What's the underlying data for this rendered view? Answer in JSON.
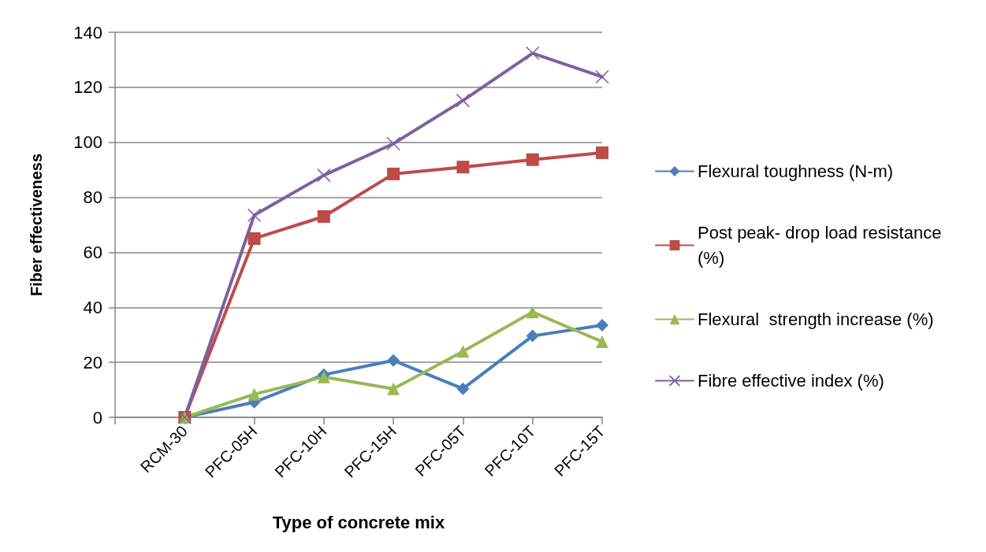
{
  "chart_data": {
    "type": "line",
    "xlabel": "Type of concrete mix",
    "ylabel": "Fiber effectiveness",
    "categories": [
      null,
      "RCM-30",
      "PFC-05H",
      "PFC-10H",
      "PFC-15H",
      "PFC-05T",
      "PFC-10T",
      "PFC-15T"
    ],
    "series": [
      {
        "name": "Flexural toughness (N-m)",
        "color": "#4a7ebb",
        "marker": "diamond",
        "values": [
          null,
          0,
          5.5,
          15.5,
          20.7,
          10.4,
          29.6,
          33.5
        ]
      },
      {
        "name": "Post peak- drop load resistance (%)",
        "color": "#be4b48",
        "marker": "square",
        "values": [
          null,
          0,
          65,
          73,
          88.5,
          91,
          93.7,
          96.2
        ]
      },
      {
        "name": "Flexural  strength increase (%)",
        "color": "#98b954",
        "marker": "triangle",
        "values": [
          null,
          0,
          8.4,
          14.7,
          10.4,
          24,
          38.3,
          27.5
        ]
      },
      {
        "name": "Fibre effective index (%)",
        "color": "#7d60a0",
        "marker": "cross",
        "values": [
          null,
          0,
          73.5,
          88,
          99.5,
          115.2,
          132.4,
          123.8
        ]
      }
    ],
    "ylim": [
      0,
      140
    ],
    "yticks": [
      0,
      20,
      40,
      60,
      80,
      100,
      120,
      140
    ],
    "grid": "y",
    "legend": "right",
    "line_style": "solid"
  }
}
